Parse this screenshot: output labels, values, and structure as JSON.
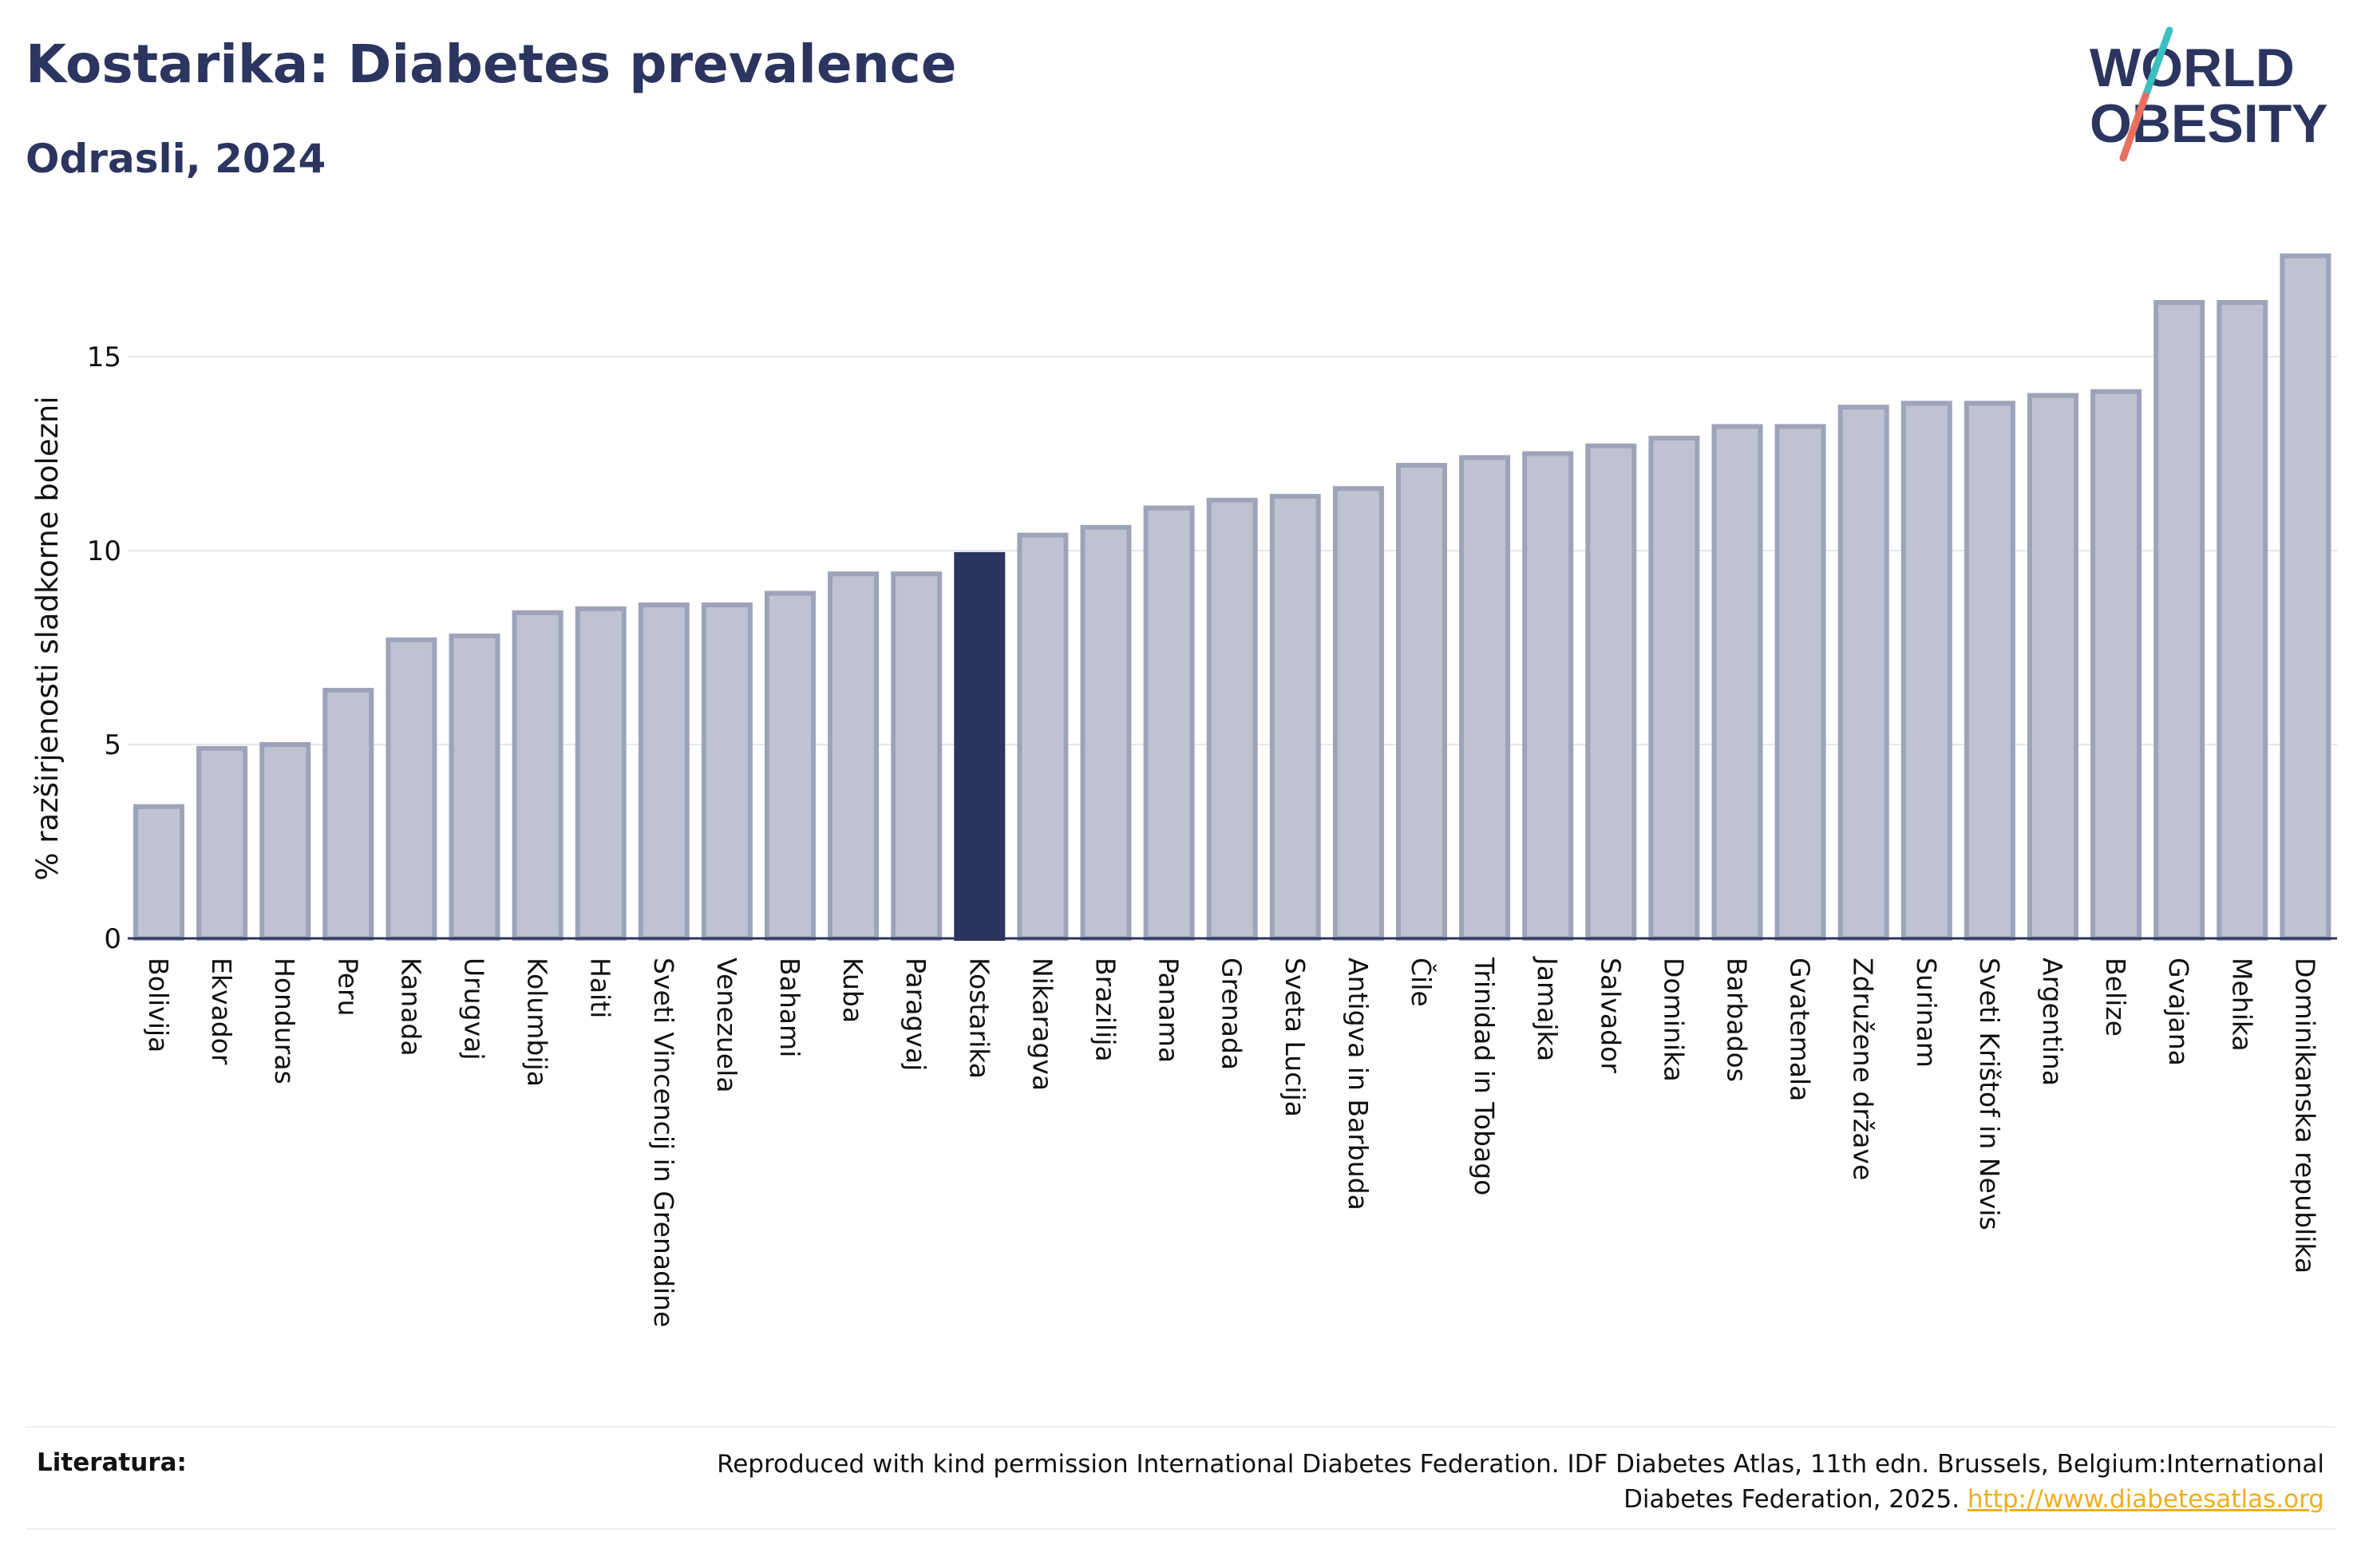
{
  "header": {
    "title": "Kostarika: Diabetes prevalence",
    "subtitle": "Odrasli, 2024"
  },
  "logo": {
    "line1": "WORLD",
    "line2": "OBESITY",
    "colors": {
      "text": "#2b355f",
      "slash_top": "#3bbfc1",
      "slash_bottom": "#e8705f"
    }
  },
  "colors": {
    "bar_fill": "#bfc2d0",
    "bar_stroke": "#9ea3ba",
    "highlight_fill": "#2b355f",
    "axis_text": "#111111",
    "grid": "#e6e7ec"
  },
  "chart_data": {
    "type": "bar",
    "ylabel": "% razširjenosti sladkorne bolezni",
    "xlabel": "",
    "ylim": [
      0,
      18
    ],
    "yticks": [
      0,
      5,
      10,
      15
    ],
    "grid": true,
    "highlight": "Kostarika",
    "categories": [
      "Bolivija",
      "Ekvador",
      "Honduras",
      "Peru",
      "Kanada",
      "Urugvaj",
      "Kolumbija",
      "Haiti",
      "Sveti Vincencij in Grenadine",
      "Venezuela",
      "Bahami",
      "Kuba",
      "Paragvaj",
      "Kostarika",
      "Nikaragva",
      "Brazilija",
      "Panama",
      "Grenada",
      "Sveta Lucija",
      "Antigva in Barbuda",
      "Čile",
      "Trinidad in Tobago",
      "Jamajka",
      "Salvador",
      "Dominika",
      "Barbados",
      "Gvatemala",
      "Združene države",
      "Surinam",
      "Sveti Krištof in Nevis",
      "Argentina",
      "Belize",
      "Gvajana",
      "Mehika",
      "Dominikanska republika"
    ],
    "values": [
      3.4,
      4.9,
      5.0,
      6.4,
      7.7,
      7.8,
      8.4,
      8.5,
      8.6,
      8.6,
      8.9,
      9.4,
      9.4,
      9.9,
      10.4,
      10.6,
      11.1,
      11.3,
      11.4,
      11.6,
      12.2,
      12.4,
      12.5,
      12.7,
      12.9,
      13.2,
      13.2,
      13.7,
      13.8,
      13.8,
      14.0,
      14.1,
      16.4,
      16.4,
      17.6
    ]
  },
  "footer": {
    "label": "Literatura:",
    "text": "Reproduced with kind permission International Diabetes Federation. IDF Diabetes Atlas, 11th edn. Brussels, Belgium:International Diabetes Federation, 2025.",
    "link": "http://www.diabetesatlas.org"
  }
}
